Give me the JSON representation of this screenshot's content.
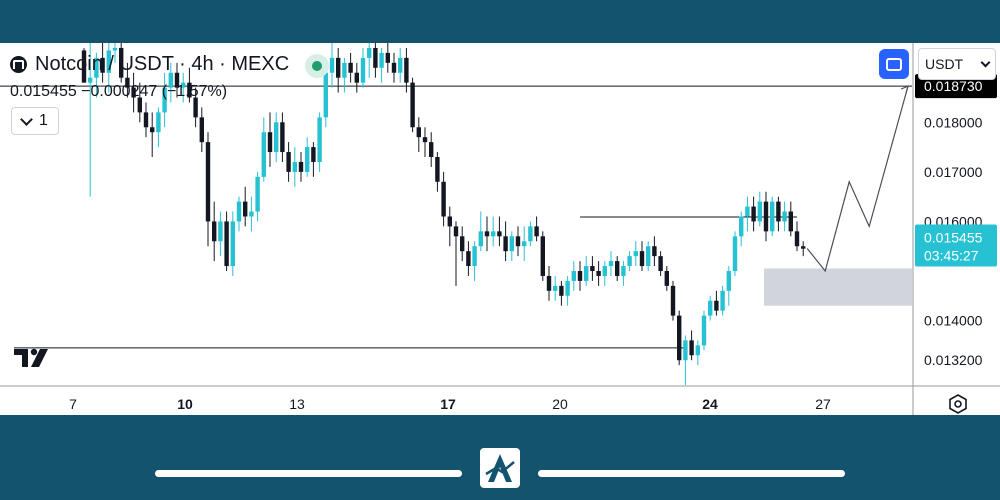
{
  "legend": {
    "title": "Notcoin / USDT · 4h · MEXC",
    "values": "0.015455 −0.000247 (−1.57%)",
    "collapse_count": "1"
  },
  "toolbar": {
    "currency": "USDT"
  },
  "price_labels": {
    "target": "0.018730",
    "current": "0.015455",
    "countdown": "03:45:27"
  },
  "colors": {
    "up": "#26c1d3",
    "down": "#131722",
    "frame": "#14536e",
    "target_label_bg": "#000000",
    "current_label_bg": "#26c1d3",
    "zone_fill": "#d1d4dc"
  },
  "icons": [
    "coin-icon",
    "status-dot-icon",
    "chevron-down-icon",
    "fullscreen-icon",
    "tradingview-logo-icon",
    "settings-icon",
    "app-logo-icon"
  ],
  "chart_data": {
    "type": "candlestick",
    "y_ticks": [
      "0.018000",
      "0.017000",
      "0.016000",
      "0.014000",
      "0.013200"
    ],
    "x_ticks": [
      "7",
      "10",
      "13",
      "17",
      "20",
      "24",
      "27"
    ],
    "bold_x_ticks": [
      "10",
      "17",
      "24"
    ],
    "ylim": [
      0.0127,
      0.0196
    ],
    "candles": [
      [
        0.01945,
        0.0195,
        0.0188,
        0.0188
      ],
      [
        0.0188,
        0.0196,
        0.0165,
        0.0189
      ],
      [
        0.0189,
        0.0194,
        0.0185,
        0.0193
      ],
      [
        0.0193,
        0.01965,
        0.0188,
        0.019
      ],
      [
        0.019,
        0.0196,
        0.0186,
        0.01945
      ],
      [
        0.01945,
        0.01965,
        0.0192,
        0.0195
      ],
      [
        0.0195,
        0.0196,
        0.0188,
        0.0189
      ],
      [
        0.0189,
        0.0192,
        0.0185,
        0.0187
      ],
      [
        0.0187,
        0.019,
        0.0182,
        0.0185
      ],
      [
        0.0185,
        0.0188,
        0.018,
        0.0182
      ],
      [
        0.0182,
        0.0184,
        0.0177,
        0.0179
      ],
      [
        0.0179,
        0.0182,
        0.0173,
        0.0178
      ],
      [
        0.0178,
        0.0183,
        0.0175,
        0.0182
      ],
      [
        0.0182,
        0.019,
        0.0179,
        0.0187
      ],
      [
        0.0187,
        0.0192,
        0.0184,
        0.019
      ],
      [
        0.019,
        0.0192,
        0.0185,
        0.0187
      ],
      [
        0.0187,
        0.019,
        0.0184,
        0.0188
      ],
      [
        0.0188,
        0.0191,
        0.0184,
        0.0185
      ],
      [
        0.0185,
        0.0187,
        0.0179,
        0.0181
      ],
      [
        0.0181,
        0.0183,
        0.0174,
        0.0176
      ],
      [
        0.0176,
        0.0178,
        0.0155,
        0.016
      ],
      [
        0.016,
        0.0164,
        0.0152,
        0.0156
      ],
      [
        0.0156,
        0.0162,
        0.0153,
        0.016
      ],
      [
        0.016,
        0.0162,
        0.015,
        0.0151
      ],
      [
        0.0151,
        0.0162,
        0.0149,
        0.016
      ],
      [
        0.016,
        0.0165,
        0.0158,
        0.0164
      ],
      [
        0.0164,
        0.0167,
        0.0159,
        0.0161
      ],
      [
        0.0161,
        0.0165,
        0.0158,
        0.0162
      ],
      [
        0.0162,
        0.017,
        0.016,
        0.0169
      ],
      [
        0.0169,
        0.0181,
        0.0168,
        0.0178
      ],
      [
        0.0178,
        0.0182,
        0.0171,
        0.0174
      ],
      [
        0.0174,
        0.0182,
        0.0172,
        0.018
      ],
      [
        0.018,
        0.0182,
        0.0172,
        0.0174
      ],
      [
        0.0174,
        0.0176,
        0.0168,
        0.017
      ],
      [
        0.017,
        0.0175,
        0.0167,
        0.0172
      ],
      [
        0.0172,
        0.0174,
        0.0168,
        0.017
      ],
      [
        0.017,
        0.0177,
        0.0169,
        0.0175
      ],
      [
        0.0175,
        0.0176,
        0.0169,
        0.0172
      ],
      [
        0.0172,
        0.0182,
        0.017,
        0.0181
      ],
      [
        0.0181,
        0.0192,
        0.0179,
        0.019
      ],
      [
        0.019,
        0.0196,
        0.0187,
        0.0193
      ],
      [
        0.0193,
        0.0195,
        0.0186,
        0.0189
      ],
      [
        0.0189,
        0.0193,
        0.0186,
        0.0192
      ],
      [
        0.0192,
        0.0194,
        0.0188,
        0.019
      ],
      [
        0.019,
        0.0192,
        0.0186,
        0.0188
      ],
      [
        0.0188,
        0.0195,
        0.0187,
        0.0193
      ],
      [
        0.0193,
        0.0196,
        0.0189,
        0.0195
      ],
      [
        0.0195,
        0.0196,
        0.0189,
        0.0191
      ],
      [
        0.0191,
        0.0195,
        0.0188,
        0.0194
      ],
      [
        0.0194,
        0.0196,
        0.019,
        0.0192
      ],
      [
        0.0192,
        0.0194,
        0.0188,
        0.019
      ],
      [
        0.019,
        0.0195,
        0.0188,
        0.0193
      ],
      [
        0.0193,
        0.0195,
        0.0186,
        0.0188
      ],
      [
        0.0188,
        0.0189,
        0.0178,
        0.0179
      ],
      [
        0.0179,
        0.0181,
        0.0174,
        0.0177
      ],
      [
        0.0177,
        0.0179,
        0.0173,
        0.0176
      ],
      [
        0.0176,
        0.0178,
        0.0171,
        0.0173
      ],
      [
        0.0173,
        0.0174,
        0.0166,
        0.0168
      ],
      [
        0.0168,
        0.017,
        0.0159,
        0.0161
      ],
      [
        0.0161,
        0.0163,
        0.0155,
        0.0159
      ],
      [
        0.0159,
        0.016,
        0.0147,
        0.0157
      ],
      [
        0.0157,
        0.0159,
        0.0152,
        0.0154
      ],
      [
        0.0154,
        0.0156,
        0.0149,
        0.0151
      ],
      [
        0.0151,
        0.0156,
        0.0148,
        0.0155
      ],
      [
        0.0155,
        0.0162,
        0.0154,
        0.0158
      ],
      [
        0.0158,
        0.0161,
        0.0154,
        0.0157
      ],
      [
        0.0157,
        0.0161,
        0.0155,
        0.0158
      ],
      [
        0.0158,
        0.0161,
        0.0155,
        0.0157
      ],
      [
        0.0157,
        0.016,
        0.0152,
        0.0154
      ],
      [
        0.0154,
        0.0158,
        0.0152,
        0.0157
      ],
      [
        0.0157,
        0.0159,
        0.0153,
        0.0155
      ],
      [
        0.0155,
        0.0159,
        0.0152,
        0.0156
      ],
      [
        0.0156,
        0.016,
        0.0155,
        0.0159
      ],
      [
        0.0159,
        0.0161,
        0.0156,
        0.0157
      ],
      [
        0.0157,
        0.0158,
        0.0148,
        0.0149
      ],
      [
        0.0149,
        0.0151,
        0.0144,
        0.0146
      ],
      [
        0.0146,
        0.0149,
        0.0144,
        0.0147
      ],
      [
        0.0147,
        0.0148,
        0.0143,
        0.0145
      ],
      [
        0.0145,
        0.0149,
        0.0143,
        0.0148
      ],
      [
        0.0148,
        0.0152,
        0.0146,
        0.015
      ],
      [
        0.015,
        0.0152,
        0.0146,
        0.0148
      ],
      [
        0.0148,
        0.0153,
        0.0147,
        0.0151
      ],
      [
        0.0151,
        0.0153,
        0.0148,
        0.015
      ],
      [
        0.015,
        0.0152,
        0.0147,
        0.0149
      ],
      [
        0.0149,
        0.0152,
        0.0147,
        0.0151
      ],
      [
        0.0151,
        0.0154,
        0.0149,
        0.0152
      ],
      [
        0.0152,
        0.0153,
        0.0148,
        0.0149
      ],
      [
        0.0149,
        0.0152,
        0.0147,
        0.0151
      ],
      [
        0.0151,
        0.0154,
        0.015,
        0.0153
      ],
      [
        0.0153,
        0.0156,
        0.0151,
        0.0154
      ],
      [
        0.0154,
        0.0156,
        0.015,
        0.0151
      ],
      [
        0.0151,
        0.0156,
        0.015,
        0.0155
      ],
      [
        0.0155,
        0.0157,
        0.0151,
        0.0153
      ],
      [
        0.0153,
        0.0154,
        0.0149,
        0.015
      ],
      [
        0.015,
        0.0151,
        0.0146,
        0.0147
      ],
      [
        0.0147,
        0.0148,
        0.014,
        0.0141
      ],
      [
        0.0141,
        0.0142,
        0.0131,
        0.0132
      ],
      [
        0.0132,
        0.0137,
        0.0127,
        0.0136
      ],
      [
        0.0136,
        0.0138,
        0.0132,
        0.0133
      ],
      [
        0.0133,
        0.0136,
        0.0131,
        0.0135
      ],
      [
        0.0135,
        0.0142,
        0.0134,
        0.0141
      ],
      [
        0.0141,
        0.0145,
        0.014,
        0.0144
      ],
      [
        0.0144,
        0.0146,
        0.0141,
        0.0142
      ],
      [
        0.0142,
        0.0147,
        0.0141,
        0.0146
      ],
      [
        0.0146,
        0.0151,
        0.0143,
        0.015
      ],
      [
        0.015,
        0.0158,
        0.0149,
        0.0157
      ],
      [
        0.0157,
        0.0162,
        0.0155,
        0.0161
      ],
      [
        0.0161,
        0.0165,
        0.0158,
        0.0163
      ],
      [
        0.0163,
        0.0165,
        0.0158,
        0.016
      ],
      [
        0.016,
        0.0166,
        0.0159,
        0.0164
      ],
      [
        0.0164,
        0.0166,
        0.0156,
        0.0158
      ],
      [
        0.0158,
        0.0165,
        0.0157,
        0.0164
      ],
      [
        0.0164,
        0.0165,
        0.0158,
        0.016
      ],
      [
        0.016,
        0.0164,
        0.0158,
        0.0162
      ],
      [
        0.0162,
        0.0164,
        0.0157,
        0.0158
      ],
      [
        0.0158,
        0.016,
        0.0154,
        0.0155
      ],
      [
        0.0155,
        0.0156,
        0.0153,
        0.01545
      ]
    ],
    "levels": [
      {
        "price": 0.01873,
        "label": "0.018730"
      },
      {
        "price": 0.01345
      },
      {
        "price": 0.01609
      }
    ],
    "demand_zone": [
      0.0143,
      0.01505
    ],
    "projection_path": [
      0.015455,
      0.015,
      0.0168,
      0.0159,
      0.01873
    ]
  }
}
